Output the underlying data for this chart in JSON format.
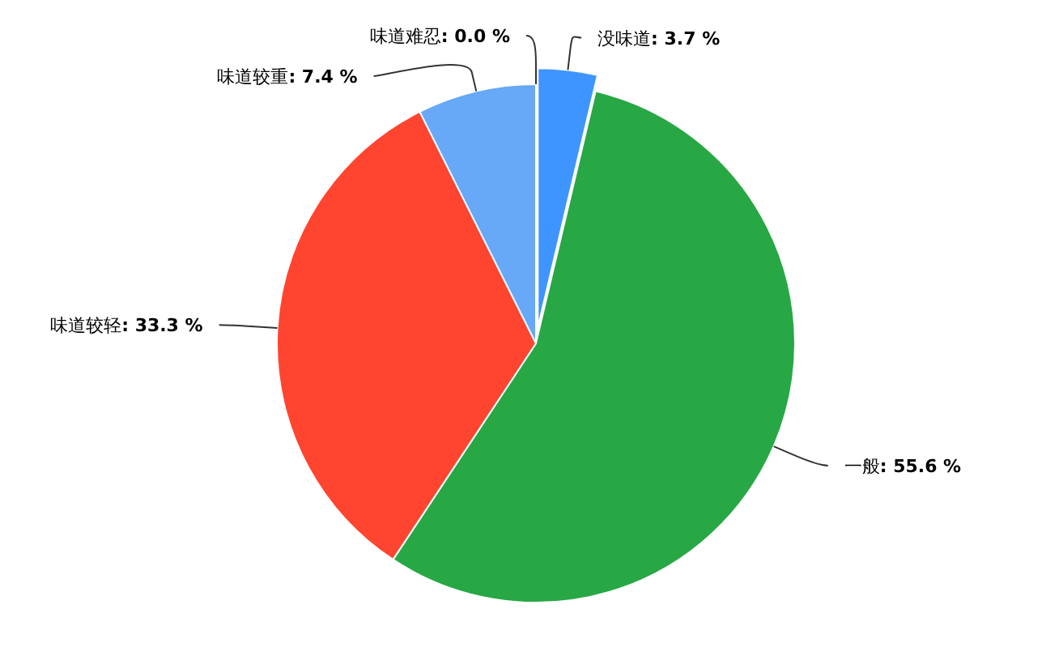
{
  "chart_data": {
    "type": "pie",
    "categories": [
      "没味道",
      "一般",
      "味道较轻",
      "味道较重",
      "味道难忍"
    ],
    "values": [
      3.7,
      55.6,
      33.3,
      7.4,
      0.0
    ],
    "colors": [
      "#3e95ff",
      "#28a745",
      "#ff4530",
      "#67a8f7",
      null
    ],
    "value_labels": [
      ": 3.7 %",
      ": 55.6 %",
      ": 33.3 %",
      ": 7.4 %",
      ": 0.0 %"
    ]
  }
}
